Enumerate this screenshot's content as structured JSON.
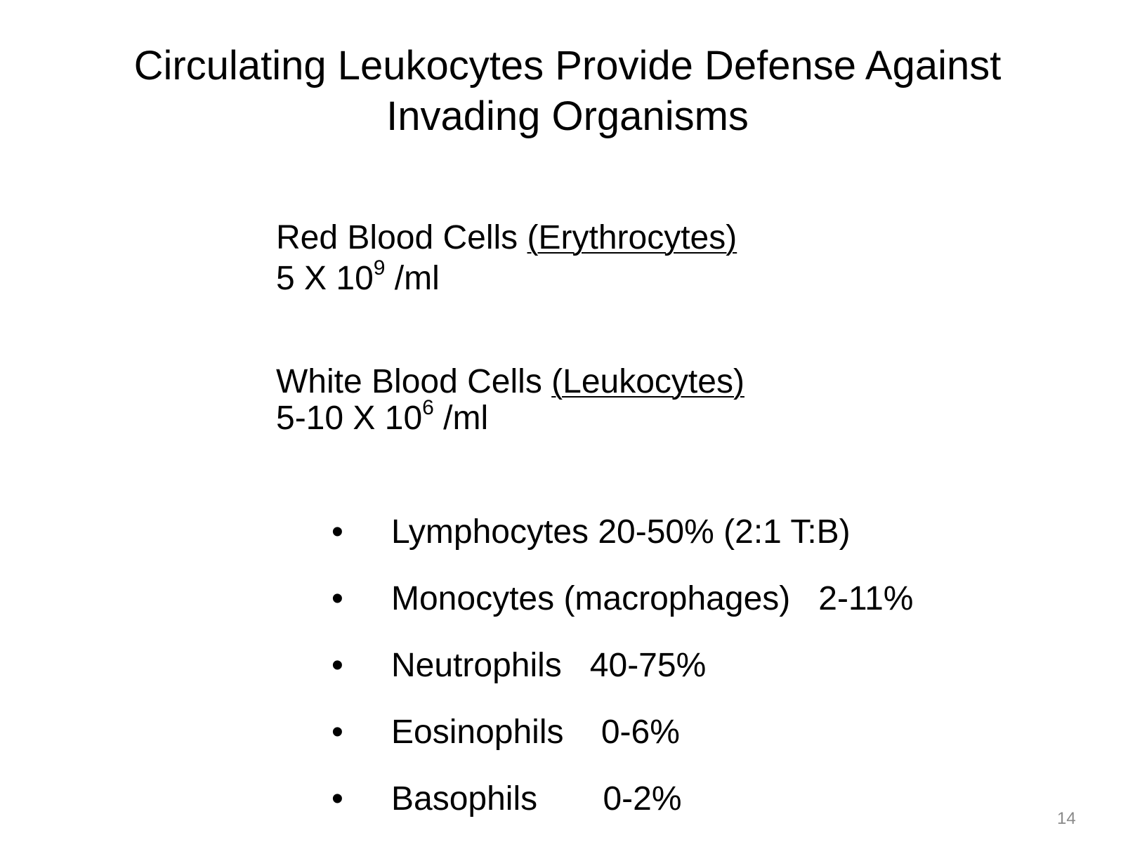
{
  "slide": {
    "title_line1": "Circulating Leukocytes Provide Defense Against",
    "title_line2": "Invading Organisms",
    "rbc": {
      "label": "Red Blood Cells ",
      "term": "(Erythrocytes)",
      "count_base": "5 X 10",
      "count_exp": "9",
      "count_unit": " /ml"
    },
    "wbc": {
      "label": "White Blood Cells ",
      "term": "(Leukocytes)",
      "count_base": "5-10 X 10",
      "count_exp": "6",
      "count_unit": " /ml"
    },
    "bullet_symbol": "•",
    "bullets": [
      "Lymphocytes 20-50% (2:1 T:B)",
      "Monocytes (macrophages)   2-11%",
      "Neutrophils   40-75%",
      "Eosinophils    0-6%",
      "Basophils       0-2%"
    ],
    "page_number": "14"
  }
}
